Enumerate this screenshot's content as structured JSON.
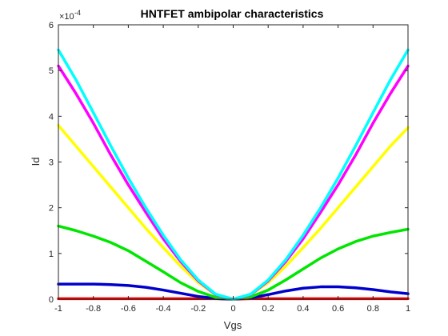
{
  "chart_data": {
    "type": "line",
    "title": "HNTFET ambipolar characteristics",
    "xlabel": "Vgs",
    "ylabel": "Id",
    "y_exponent_label": "×10",
    "y_exponent": "-4",
    "y_scale": 0.0001,
    "xlim": [
      -1,
      1
    ],
    "ylim": [
      0,
      6
    ],
    "xticks": [
      -1,
      -0.8,
      -0.6,
      -0.4,
      -0.2,
      0,
      0.2,
      0.4,
      0.6,
      0.8,
      1
    ],
    "xtick_labels": [
      "-1",
      "-0.8",
      "-0.6",
      "-0.4",
      "-0.2",
      "0",
      "0.2",
      "0.4",
      "0.6",
      "0.8",
      "1"
    ],
    "yticks": [
      0,
      1,
      2,
      3,
      4,
      5,
      6
    ],
    "ytick_labels": [
      "0",
      "1",
      "2",
      "3",
      "4",
      "5",
      "6"
    ],
    "grid": false,
    "x": [
      -1,
      -0.9,
      -0.8,
      -0.7,
      -0.6,
      -0.5,
      -0.4,
      -0.3,
      -0.2,
      -0.1,
      0,
      0.1,
      0.2,
      0.3,
      0.4,
      0.5,
      0.6,
      0.7,
      0.8,
      0.9,
      1
    ],
    "series": [
      {
        "color": "#ff0000",
        "values": [
          0.01,
          0.01,
          0.01,
          0.01,
          0.01,
          0.01,
          0.01,
          0.01,
          0.01,
          0.01,
          0,
          0.01,
          0.01,
          0.01,
          0.01,
          0.01,
          0.01,
          0.01,
          0.01,
          0.01,
          0.01
        ]
      },
      {
        "color": "#0000cc",
        "values": [
          0.33,
          0.33,
          0.33,
          0.32,
          0.3,
          0.26,
          0.2,
          0.13,
          0.06,
          0.015,
          0,
          0.03,
          0.1,
          0.18,
          0.24,
          0.27,
          0.27,
          0.25,
          0.21,
          0.16,
          0.12
        ]
      },
      {
        "color": "#00e600",
        "values": [
          1.6,
          1.5,
          1.38,
          1.24,
          1.06,
          0.83,
          0.6,
          0.36,
          0.17,
          0.04,
          0,
          0.05,
          0.2,
          0.42,
          0.66,
          0.9,
          1.1,
          1.26,
          1.38,
          1.46,
          1.53
        ]
      },
      {
        "color": "#ffff00",
        "values": [
          3.8,
          3.35,
          2.9,
          2.45,
          2.0,
          1.55,
          1.13,
          0.72,
          0.36,
          0.1,
          0,
          0.1,
          0.36,
          0.72,
          1.13,
          1.55,
          2.0,
          2.45,
          2.9,
          3.35,
          3.75
        ]
      },
      {
        "color": "#ff00ff",
        "values": [
          5.1,
          4.5,
          3.85,
          3.15,
          2.5,
          1.9,
          1.32,
          0.82,
          0.4,
          0.1,
          0,
          0.1,
          0.4,
          0.82,
          1.32,
          1.9,
          2.5,
          3.15,
          3.85,
          4.5,
          5.1
        ]
      },
      {
        "color": "#00ffff",
        "values": [
          5.45,
          4.8,
          4.08,
          3.35,
          2.65,
          2.0,
          1.4,
          0.86,
          0.42,
          0.11,
          0,
          0.11,
          0.42,
          0.86,
          1.4,
          2.0,
          2.65,
          3.35,
          4.08,
          4.8,
          5.45
        ]
      }
    ]
  }
}
